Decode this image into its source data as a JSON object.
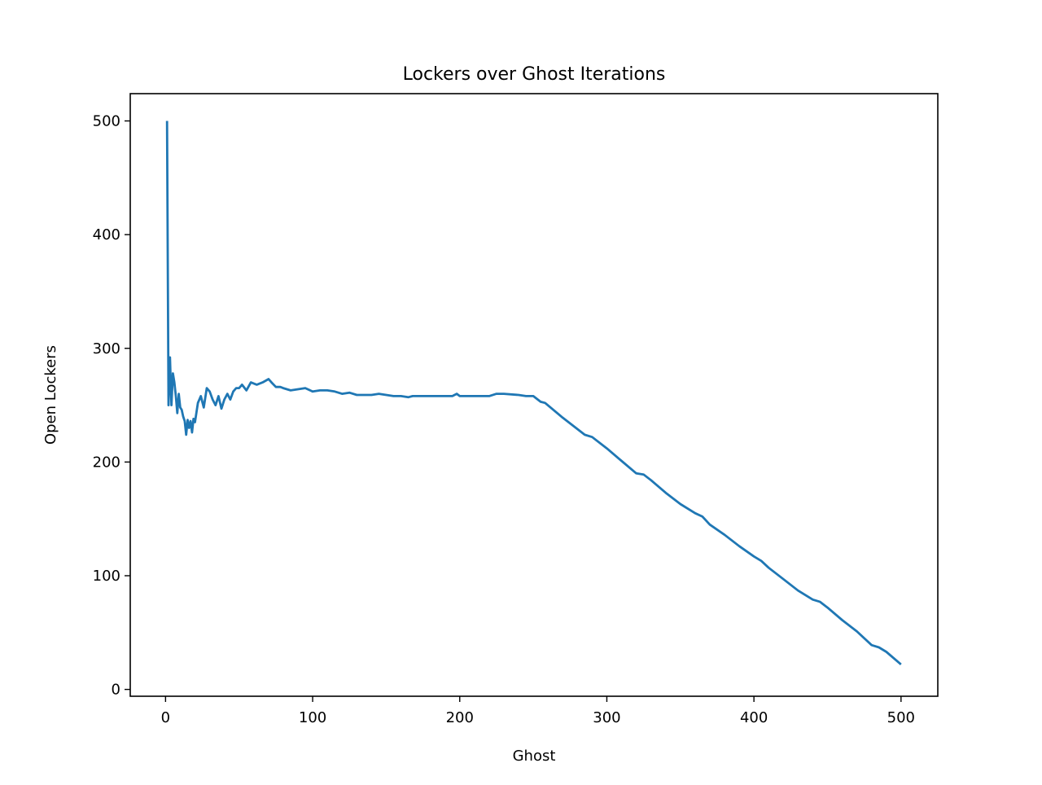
{
  "chart_data": {
    "type": "line",
    "title": "Lockers over Ghost Iterations",
    "xlabel": "Ghost",
    "ylabel": "Open Lockers",
    "xlim": [
      -24,
      525
    ],
    "ylim": [
      -6,
      524
    ],
    "xticks": [
      0,
      100,
      200,
      300,
      400,
      500
    ],
    "yticks": [
      0,
      100,
      200,
      300,
      400,
      500
    ],
    "grid": false,
    "legend": "none",
    "series": [
      {
        "color": "#1f77b4",
        "x": [
          1,
          2,
          3,
          4,
          5,
          6,
          7,
          8,
          9,
          10,
          11,
          12,
          13,
          14,
          15,
          16,
          17,
          18,
          19,
          20,
          22,
          24,
          26,
          28,
          30,
          32,
          34,
          36,
          38,
          40,
          42,
          44,
          46,
          48,
          50,
          52,
          55,
          58,
          62,
          66,
          70,
          72,
          75,
          78,
          80,
          85,
          90,
          95,
          100,
          105,
          110,
          115,
          120,
          125,
          130,
          135,
          140,
          145,
          150,
          155,
          160,
          165,
          168,
          170,
          175,
          180,
          185,
          190,
          195,
          198,
          200,
          210,
          220,
          225,
          230,
          240,
          245,
          250,
          255,
          258,
          270,
          285,
          290,
          300,
          310,
          320,
          325,
          330,
          340,
          350,
          360,
          365,
          370,
          380,
          390,
          400,
          405,
          410,
          420,
          430,
          440,
          445,
          450,
          460,
          470,
          480,
          485,
          490,
          500
        ],
        "y": [
          500,
          250,
          292,
          250,
          278,
          270,
          258,
          243,
          260,
          248,
          246,
          240,
          236,
          224,
          237,
          230,
          236,
          226,
          238,
          235,
          252,
          258,
          248,
          265,
          262,
          255,
          250,
          258,
          247,
          255,
          260,
          255,
          262,
          265,
          265,
          268,
          263,
          270,
          268,
          270,
          273,
          270,
          266,
          266,
          265,
          263,
          264,
          265,
          262,
          263,
          263,
          262,
          260,
          261,
          259,
          259,
          259,
          260,
          259,
          258,
          258,
          257,
          258,
          258,
          258,
          258,
          258,
          258,
          258,
          260,
          258,
          258,
          258,
          260,
          260,
          259,
          258,
          258,
          253,
          252,
          239,
          224,
          222,
          212,
          201,
          190,
          189,
          184,
          173,
          163,
          155,
          152,
          145,
          136,
          126,
          117,
          113,
          107,
          97,
          87,
          79,
          77,
          72,
          61,
          51,
          39,
          37,
          33,
          22
        ]
      }
    ]
  }
}
